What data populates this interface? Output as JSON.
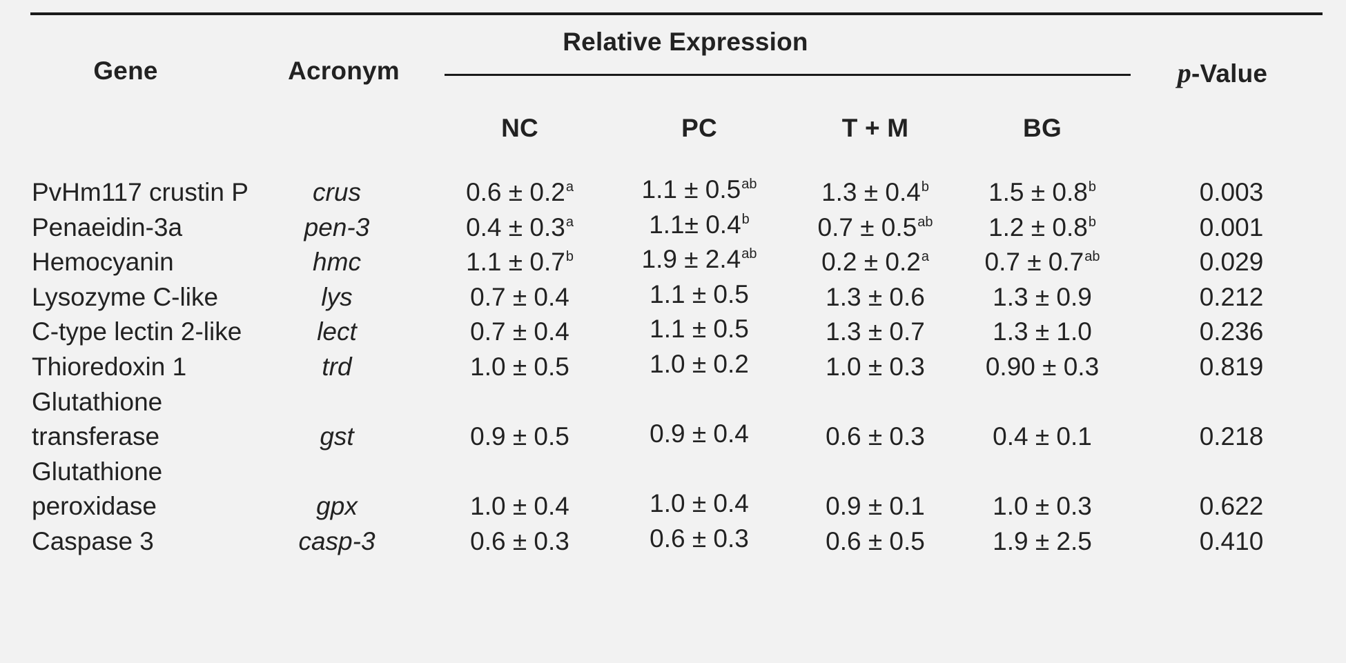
{
  "table": {
    "headers": {
      "gene": "Gene",
      "acronym": "Acronym",
      "relative_expression": "Relative Expression",
      "p_prefix": "p",
      "p_suffix": "-Value",
      "groups": [
        "NC",
        "PC",
        "T + M",
        "BG"
      ]
    },
    "rows": [
      {
        "gene": [
          "PvHm117 crustin P"
        ],
        "acronym": "crus",
        "values": [
          {
            "v": "0.6 ± 0.2",
            "s": "a"
          },
          {
            "v": "1.1 ± 0.5",
            "s": "ab"
          },
          {
            "v": "1.3 ± 0.4",
            "s": "b"
          },
          {
            "v": "1.5 ± 0.8",
            "s": "b"
          }
        ],
        "p": "0.003"
      },
      {
        "gene": [
          "Penaeidin-3a"
        ],
        "acronym": "pen-3",
        "values": [
          {
            "v": "0.4 ± 0.3",
            "s": "a"
          },
          {
            "v": "1.1± 0.4",
            "s": "b"
          },
          {
            "v": "0.7 ± 0.5",
            "s": "ab"
          },
          {
            "v": "1.2 ± 0.8",
            "s": "b"
          }
        ],
        "p": "0.001"
      },
      {
        "gene": [
          "Hemocyanin"
        ],
        "acronym": "hmc",
        "values": [
          {
            "v": "1.1 ± 0.7",
            "s": "b"
          },
          {
            "v": "1.9 ± 2.4",
            "s": "ab"
          },
          {
            "v": "0.2 ± 0.2",
            "s": "a"
          },
          {
            "v": "0.7 ± 0.7",
            "s": "ab"
          }
        ],
        "p": "0.029"
      },
      {
        "gene": [
          "Lysozyme C-like"
        ],
        "acronym": "lys",
        "values": [
          {
            "v": "0.7 ± 0.4",
            "s": ""
          },
          {
            "v": "1.1 ± 0.5",
            "s": ""
          },
          {
            "v": "1.3 ± 0.6",
            "s": ""
          },
          {
            "v": "1.3 ± 0.9",
            "s": ""
          }
        ],
        "p": "0.212"
      },
      {
        "gene": [
          "C-type lectin 2-like"
        ],
        "acronym": "lect",
        "values": [
          {
            "v": "0.7 ± 0.4",
            "s": ""
          },
          {
            "v": "1.1 ± 0.5",
            "s": ""
          },
          {
            "v": "1.3 ± 0.7",
            "s": ""
          },
          {
            "v": "1.3 ± 1.0",
            "s": ""
          }
        ],
        "p": "0.236"
      },
      {
        "gene": [
          "Thioredoxin 1"
        ],
        "acronym": "trd",
        "values": [
          {
            "v": "1.0 ± 0.5",
            "s": ""
          },
          {
            "v": "1.0 ± 0.2",
            "s": ""
          },
          {
            "v": "1.0 ± 0.3",
            "s": ""
          },
          {
            "v": "0.90 ± 0.3",
            "s": ""
          }
        ],
        "p": "0.819"
      },
      {
        "gene": [
          "Glutathione",
          "transferase"
        ],
        "acronym": "gst",
        "values": [
          {
            "v": "0.9 ± 0.5",
            "s": ""
          },
          {
            "v": "0.9 ± 0.4",
            "s": ""
          },
          {
            "v": "0.6 ± 0.3",
            "s": ""
          },
          {
            "v": "0.4 ± 0.1",
            "s": ""
          }
        ],
        "p": "0.218"
      },
      {
        "gene": [
          "Glutathione",
          "peroxidase"
        ],
        "acronym": "gpx",
        "values": [
          {
            "v": "1.0 ± 0.4",
            "s": ""
          },
          {
            "v": "1.0 ± 0.4",
            "s": ""
          },
          {
            "v": "0.9 ± 0.1",
            "s": ""
          },
          {
            "v": "1.0 ± 0.3",
            "s": ""
          }
        ],
        "p": "0.622"
      },
      {
        "gene": [
          "Caspase 3"
        ],
        "acronym": "casp-3",
        "values": [
          {
            "v": "0.6 ± 0.3",
            "s": ""
          },
          {
            "v": "0.6 ± 0.3",
            "s": ""
          },
          {
            "v": "0.6 ± 0.5",
            "s": ""
          },
          {
            "v": "1.9 ± 2.5",
            "s": ""
          }
        ],
        "p": "0.410"
      }
    ]
  }
}
